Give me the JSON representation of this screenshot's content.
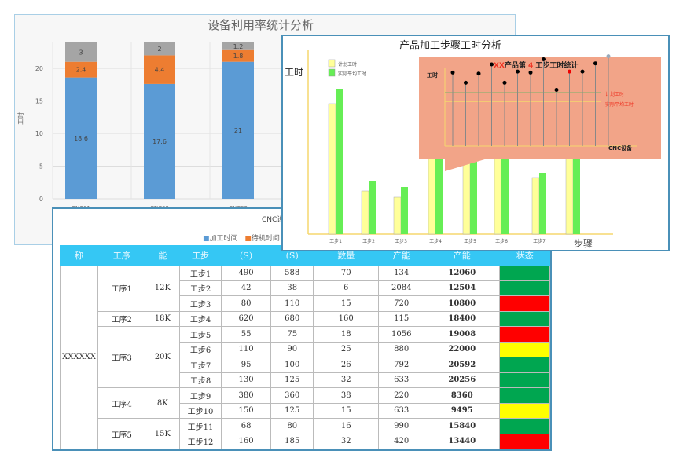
{
  "chart_data": [
    {
      "type": "bar",
      "stacked": true,
      "title": "设备利用率统计分析",
      "ylabel": "工时",
      "ylim": [
        0,
        24
      ],
      "yticks": [
        0,
        5,
        10,
        15,
        20
      ],
      "categories": [
        "CNC01",
        "CNC02",
        "CNC03"
      ],
      "series": [
        {
          "name": "加工时间",
          "color": "#5b9bd5",
          "values": [
            18.6,
            17.6,
            21
          ]
        },
        {
          "name": "待机时间",
          "color": "#ed7d31",
          "values": [
            2.4,
            4.4,
            1.8
          ]
        },
        {
          "name": "",
          "color": "#a5a5a5",
          "values": [
            3,
            2,
            1.2
          ]
        }
      ],
      "subtitle": "CNC设",
      "legend": "bottom"
    },
    {
      "type": "bar",
      "title": "产品加工步骤工时分析",
      "ylabel": "工时",
      "xlabel": "步骤",
      "categories": [
        "工步1",
        "工步2",
        "工步3",
        "工步4",
        "工步5",
        "工步6",
        "工步7",
        ""
      ],
      "series": [
        {
          "name": "计划工时",
          "color": "#ffff99",
          "values": [
            166,
            55,
            47,
            110,
            100,
            105,
            72,
            110
          ]
        },
        {
          "name": "实际平均工时",
          "color": "#66ee55",
          "values": [
            185,
            68,
            60,
            120,
            115,
            118,
            78,
            125
          ]
        }
      ],
      "legend": "top-left",
      "inset": {
        "title_prefix": "XX",
        "title_mid": "产品第 ",
        "title_num": "4",
        "title_suffix": " 工步工时统计",
        "ylabel": "工时",
        "xlabel": "CNC设备",
        "lines": [
          "计划工时",
          "实际平均工时"
        ],
        "points": [
          72,
          62,
          71,
          80,
          62,
          73,
          72,
          85,
          55,
          73,
          73,
          81,
          88
        ]
      }
    }
  ],
  "table": {
    "headers": [
      "称",
      "工序",
      "能",
      "工步",
      "(S)",
      "(S)",
      "数量",
      "产能",
      "产能",
      "状态"
    ],
    "product": "XXXXXX",
    "groups": [
      {
        "name": "工序1",
        "cap": "12K",
        "rows": 3
      },
      {
        "name": "工序2",
        "cap": "18K",
        "rows": 1
      },
      {
        "name": "工序3",
        "cap": "20K",
        "rows": 4
      },
      {
        "name": "工序4",
        "cap": "8K",
        "rows": 2
      },
      {
        "name": "工序5",
        "cap": "15K",
        "rows": 2
      }
    ],
    "rows": [
      [
        "工步1",
        "490",
        "588",
        "70",
        "134",
        "12060",
        "#00a650"
      ],
      [
        "工步2",
        "42",
        "38",
        "6",
        "2084",
        "12504",
        "#00a650"
      ],
      [
        "工步3",
        "80",
        "110",
        "15",
        "720",
        "10800",
        "#ff0000"
      ],
      [
        "工步4",
        "620",
        "680",
        "160",
        "115",
        "18400",
        "#00a650"
      ],
      [
        "工步5",
        "55",
        "75",
        "18",
        "1056",
        "19008",
        "#ff0000"
      ],
      [
        "工步6",
        "110",
        "90",
        "25",
        "880",
        "22000",
        "#ffff00"
      ],
      [
        "工步7",
        "95",
        "100",
        "26",
        "792",
        "20592",
        "#00a650"
      ],
      [
        "工步8",
        "130",
        "125",
        "32",
        "633",
        "20256",
        "#00a650"
      ],
      [
        "工步9",
        "380",
        "360",
        "38",
        "220",
        "8360",
        "#00a650"
      ],
      [
        "工步10",
        "150",
        "125",
        "15",
        "633",
        "9495",
        "#ffff00"
      ],
      [
        "工步11",
        "68",
        "80",
        "16",
        "990",
        "15840",
        "#00a650"
      ],
      [
        "工步12",
        "160",
        "185",
        "32",
        "420",
        "13440",
        "#ff0000"
      ]
    ]
  }
}
